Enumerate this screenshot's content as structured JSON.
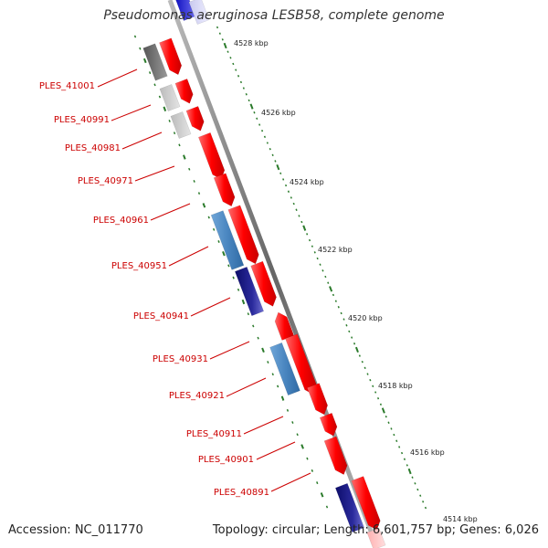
{
  "title": "Pseudomonas aeruginosa LESB58, complete genome",
  "footer": {
    "accession": "Accession: NC_011770",
    "summary": "Topology: circular; Length: 6,601,757 bp; Genes: 6,026"
  },
  "colors": {
    "forward_gene": "#ff0000",
    "reverse_gene_dark": "#1a1a8c",
    "reverse_gene_light": "#4a86c0",
    "grey_gene": "#777777",
    "light_grey_gene": "#cccccc",
    "tick": "#2a7a2a",
    "label": "#cc0000",
    "backbone": "#888888"
  },
  "kbp_labels": [
    "4528 kbp",
    "4526 kbp",
    "4524 kbp",
    "4522 kbp",
    "4520 kbp",
    "4518 kbp",
    "4516 kbp",
    "4514 kbp"
  ],
  "gene_labels": [
    "PLES_41001",
    "PLES_40991",
    "PLES_40981",
    "PLES_40971",
    "PLES_40961",
    "PLES_40951",
    "PLES_40941",
    "PLES_40931",
    "PLES_40921",
    "PLES_40911",
    "PLES_40901",
    "PLES_40891"
  ]
}
